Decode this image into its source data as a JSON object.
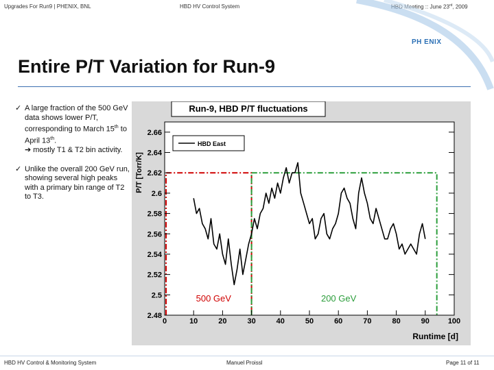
{
  "header": {
    "left": "Upgrades For Run9 | PHENIX, BNL",
    "center": "HBD HV Control System",
    "right_prefix": "HBD Meeting :: June 23",
    "right_sup": "rd",
    "right_suffix": ", 2009"
  },
  "logo_text": "PH   ENIX",
  "slide_title": "Entire P/T Variation for Run-9",
  "bullets": [
    {
      "check": "✓",
      "line1": "A large fraction of the 500 GeV data shows lower P/T, corresponding to March 15",
      "sup1": "th",
      "mid": " to April 13",
      "sup2": "th",
      "end": ".",
      "line2": "➔ mostly T1 & T2 bin activity."
    },
    {
      "check": "✓",
      "text": "Unlike the overall 200 GeV run, showing several high peaks with a primary bin range of T2 to T3."
    }
  ],
  "chart_data": {
    "type": "line",
    "title": "Run-9, HBD P/T fluctuations",
    "xlabel": "Runtime [d]",
    "ylabel": "P/T [Torr/K]",
    "xlim": [
      0,
      100
    ],
    "ylim": [
      2.48,
      2.67
    ],
    "x_ticks": [
      0,
      10,
      20,
      30,
      40,
      50,
      60,
      70,
      80,
      90,
      100
    ],
    "y_ticks": [
      "2.48",
      "2.5",
      "2.52",
      "2.54",
      "2.56",
      "2.58",
      "2.6",
      "2.62",
      "2.64",
      "2.66"
    ],
    "y_tick_values": [
      2.48,
      2.5,
      2.52,
      2.54,
      2.56,
      2.58,
      2.6,
      2.62,
      2.64,
      2.66
    ],
    "legend": {
      "label": "HBD East",
      "placement": "top-left"
    },
    "series": [
      {
        "name": "HBD East",
        "color": "#000000",
        "x": [
          10,
          11,
          12,
          13,
          14,
          15,
          16,
          17,
          18,
          19,
          20,
          21,
          22,
          23,
          24,
          25,
          26,
          27,
          28,
          29,
          30,
          31,
          32,
          33,
          34,
          35,
          36,
          37,
          38,
          39,
          40,
          41,
          42,
          43,
          44,
          45,
          46,
          47,
          48,
          49,
          50,
          51,
          52,
          53,
          54,
          55,
          56,
          57,
          58,
          59,
          60,
          61,
          62,
          63,
          64,
          65,
          66,
          67,
          68,
          69,
          70,
          71,
          72,
          73,
          74,
          75,
          76,
          77,
          78,
          79,
          80,
          81,
          82,
          83,
          84,
          85,
          86,
          87,
          88,
          89,
          90
        ],
        "y": [
          2.595,
          2.58,
          2.585,
          2.57,
          2.565,
          2.555,
          2.575,
          2.55,
          2.545,
          2.56,
          2.54,
          2.53,
          2.555,
          2.53,
          2.51,
          2.525,
          2.545,
          2.52,
          2.535,
          2.55,
          2.56,
          2.575,
          2.565,
          2.58,
          2.585,
          2.6,
          2.59,
          2.605,
          2.595,
          2.61,
          2.6,
          2.615,
          2.625,
          2.61,
          2.62,
          2.62,
          2.63,
          2.6,
          2.59,
          2.58,
          2.57,
          2.575,
          2.555,
          2.56,
          2.575,
          2.58,
          2.56,
          2.555,
          2.565,
          2.57,
          2.58,
          2.6,
          2.605,
          2.595,
          2.59,
          2.575,
          2.565,
          2.6,
          2.615,
          2.6,
          2.59,
          2.575,
          2.57,
          2.585,
          2.575,
          2.565,
          2.555,
          2.555,
          2.565,
          2.57,
          2.56,
          2.545,
          2.55,
          2.54,
          2.545,
          2.55,
          2.545,
          2.54,
          2.56,
          2.57,
          2.555
        ]
      }
    ],
    "regions": [
      {
        "label": "500 GeV",
        "x_from": 0,
        "x_to": 30,
        "color": "#d00000"
      },
      {
        "label": "200 GeV",
        "x_from": 30,
        "x_to": 94,
        "color": "#2a9d3a"
      }
    ]
  },
  "footer": {
    "left": "HBD HV Control & Monitoring System",
    "center": "Manuel Proissl",
    "right": "Page 11 of 11"
  },
  "colors": {
    "accent": "#3b6fb0",
    "plot_bg": "#d9d9d9"
  }
}
